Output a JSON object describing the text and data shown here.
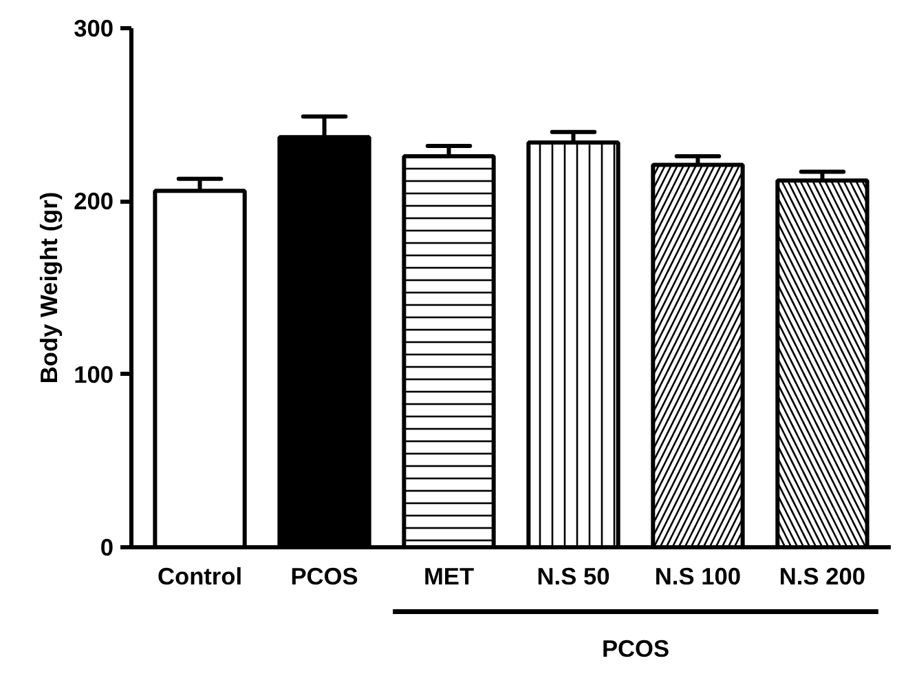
{
  "chart_data": {
    "type": "bar",
    "ylabel": "Body Weight (gr)",
    "categories": [
      "Control",
      "PCOS",
      "MET",
      "N.S 50",
      "N.S 100",
      "N.S 200"
    ],
    "values": [
      206,
      237,
      226,
      234,
      221,
      212
    ],
    "errors": [
      [
        206,
        213
      ],
      [
        237,
        249
      ],
      [
        226,
        232
      ],
      [
        234,
        240
      ],
      [
        221,
        226
      ],
      [
        212,
        217
      ]
    ],
    "colors": [
      "#ffffff",
      "#000000",
      "#ffffff",
      "#ffffff",
      "#ffffff",
      "#ffffff"
    ],
    "ylim": [
      0,
      300
    ],
    "yticks": [
      0,
      100,
      200,
      300
    ],
    "grid": false,
    "annotations": [
      "PCOS"
    ]
  }
}
